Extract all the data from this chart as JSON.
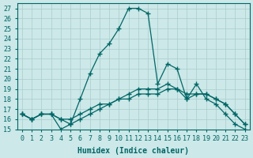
{
  "xlabel": "Humidex (Indice chaleur)",
  "ylabel": "",
  "background_color": "#cce8e8",
  "grid_color": "#aacccc",
  "line_color": "#006666",
  "xlim": [
    -0.5,
    23.5
  ],
  "ylim": [
    15,
    27.5
  ],
  "yticks": [
    15,
    16,
    17,
    18,
    19,
    20,
    21,
    22,
    23,
    24,
    25,
    26,
    27
  ],
  "xticks": [
    0,
    1,
    2,
    3,
    4,
    5,
    6,
    7,
    8,
    9,
    10,
    11,
    12,
    13,
    14,
    15,
    16,
    17,
    18,
    19,
    20,
    21,
    22,
    23
  ],
  "line1_x": [
    0,
    1,
    2,
    3,
    4,
    5,
    6,
    7,
    8,
    9,
    10,
    11,
    12,
    13,
    14,
    15,
    16,
    17,
    18,
    19,
    20,
    21,
    22,
    23
  ],
  "line1_y": [
    16.5,
    16.0,
    16.5,
    16.5,
    15.0,
    15.5,
    18.0,
    20.5,
    22.5,
    23.5,
    25.0,
    27.0,
    27.0,
    26.5,
    19.5,
    21.5,
    21.0,
    18.0,
    19.5,
    18.0,
    17.5,
    16.5,
    15.5,
    15.0
  ],
  "line2_x": [
    0,
    1,
    2,
    3,
    4,
    5,
    6,
    7,
    8,
    9,
    10,
    11,
    12,
    13,
    14,
    15,
    16,
    17,
    18,
    19,
    20,
    21,
    22,
    23
  ],
  "line2_y": [
    16.5,
    16.0,
    16.5,
    16.5,
    16.0,
    15.5,
    16.0,
    16.5,
    17.0,
    17.5,
    18.0,
    18.0,
    18.5,
    18.5,
    18.5,
    19.0,
    19.0,
    18.5,
    18.5,
    18.5,
    18.0,
    17.5,
    16.5,
    15.5
  ],
  "line3_x": [
    0,
    1,
    2,
    3,
    4,
    5,
    6,
    7,
    8,
    9,
    10,
    11,
    12,
    13,
    14,
    15,
    16,
    17,
    18,
    19,
    20,
    21,
    22,
    23
  ],
  "line3_y": [
    16.5,
    16.0,
    16.5,
    16.5,
    16.0,
    16.0,
    16.5,
    17.0,
    17.5,
    17.5,
    18.0,
    18.5,
    19.0,
    19.0,
    19.0,
    19.5,
    19.0,
    18.0,
    18.5,
    18.5,
    18.0,
    17.5,
    16.5,
    15.5
  ]
}
